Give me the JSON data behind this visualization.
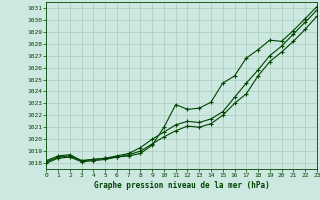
{
  "title": "Graphe pression niveau de la mer (hPa)",
  "bg_color": "#cce8e0",
  "grid_color": "#aaccbb",
  "line_color": "#004400",
  "xlim": [
    0,
    23
  ],
  "ylim": [
    1017.5,
    1031.5
  ],
  "xticks": [
    0,
    1,
    2,
    3,
    4,
    5,
    6,
    7,
    8,
    9,
    10,
    11,
    12,
    13,
    14,
    15,
    16,
    17,
    18,
    19,
    20,
    21,
    22,
    23
  ],
  "yticks": [
    1018,
    1019,
    1020,
    1021,
    1022,
    1023,
    1024,
    1025,
    1026,
    1027,
    1028,
    1029,
    1030,
    1031
  ],
  "series1": [
    1018.2,
    1018.6,
    1018.7,
    1018.2,
    1018.3,
    1018.4,
    1018.5,
    1018.6,
    1018.8,
    1019.5,
    1021.0,
    1022.9,
    1022.5,
    1022.6,
    1023.1,
    1024.7,
    1025.3,
    1026.8,
    1027.5,
    1028.3,
    1028.2,
    1029.1,
    1030.1,
    1031.1
  ],
  "series2": [
    1018.1,
    1018.5,
    1018.6,
    1018.2,
    1018.3,
    1018.4,
    1018.6,
    1018.8,
    1019.3,
    1020.0,
    1020.6,
    1021.2,
    1021.5,
    1021.4,
    1021.7,
    1022.3,
    1023.5,
    1024.7,
    1025.8,
    1027.0,
    1027.8,
    1028.8,
    1029.8,
    1030.8
  ],
  "series3": [
    1018.0,
    1018.4,
    1018.5,
    1018.1,
    1018.2,
    1018.3,
    1018.5,
    1018.7,
    1019.0,
    1019.6,
    1020.2,
    1020.7,
    1021.1,
    1021.0,
    1021.3,
    1022.0,
    1023.0,
    1023.8,
    1025.3,
    1026.5,
    1027.3,
    1028.2,
    1029.2,
    1030.3
  ]
}
